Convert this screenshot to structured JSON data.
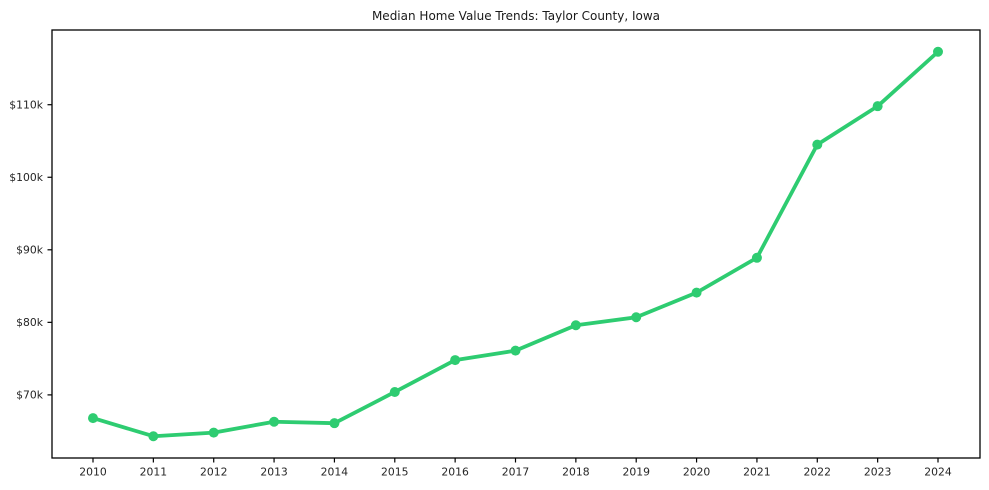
{
  "chart_data": {
    "type": "line",
    "title": "Median Home Value Trends: Taylor County, Iowa",
    "xlabel": "",
    "ylabel": "",
    "x": [
      2010,
      2011,
      2012,
      2013,
      2014,
      2015,
      2016,
      2017,
      2018,
      2019,
      2020,
      2021,
      2022,
      2023,
      2024
    ],
    "x_tick_labels": [
      "2010",
      "2011",
      "2012",
      "2013",
      "2014",
      "2015",
      "2016",
      "2017",
      "2018",
      "2019",
      "2020",
      "2021",
      "2022",
      "2023",
      "2024"
    ],
    "series": [
      {
        "name": "Median Home Value",
        "values": [
          66800,
          64300,
          64800,
          66300,
          66100,
          70400,
          74800,
          76100,
          79600,
          80700,
          84100,
          88900,
          104500,
          109800,
          117300
        ]
      }
    ],
    "y_ticks": [
      {
        "value": 70000,
        "label": "$70k"
      },
      {
        "value": 80000,
        "label": "$80k"
      },
      {
        "value": 90000,
        "label": "$90k"
      },
      {
        "value": 100000,
        "label": "$100k"
      },
      {
        "value": 110000,
        "label": "$110k"
      }
    ],
    "ylim": [
      61300,
      120300
    ],
    "grid": false,
    "legend": false,
    "line_color": "#2ecc71",
    "marker_color": "#2ecc71",
    "marker_shape": "circle",
    "text_color": "#262626",
    "frame_color": "#000000",
    "background_color": "#ffffff"
  }
}
